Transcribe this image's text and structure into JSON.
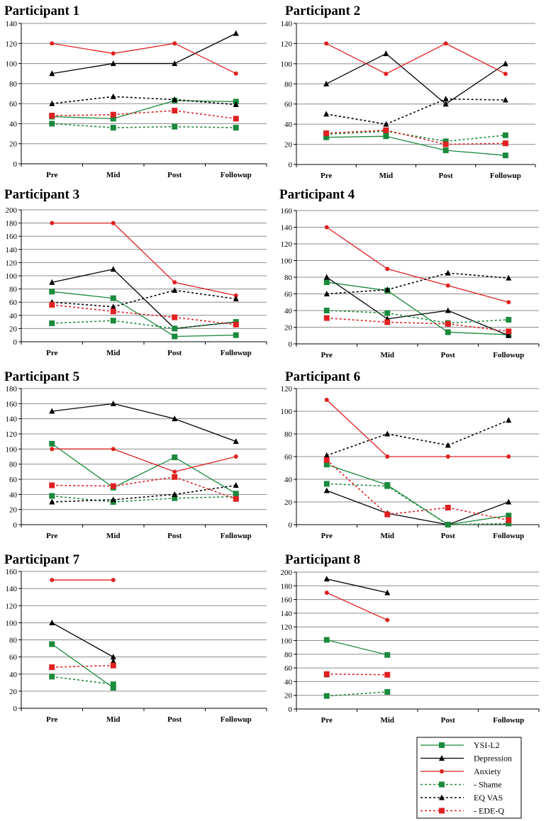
{
  "chart_data": {
    "type": "line",
    "categories": [
      "Pre",
      "Mid",
      "Post",
      "Followup"
    ],
    "series_style": [
      {
        "name": "YSI-L2",
        "color": "#1a8a3c",
        "dashed": false,
        "marker": "square"
      },
      {
        "name": "Depression",
        "color": "#000000",
        "dashed": false,
        "marker": "triangle"
      },
      {
        "name": "Anxiety",
        "color": "#e02020",
        "dashed": false,
        "marker": "circle"
      },
      {
        "name": "Shame",
        "color": "#1a8a3c",
        "dashed": true,
        "marker": "square"
      },
      {
        "name": "EQ VAS",
        "color": "#000000",
        "dashed": true,
        "marker": "triangle"
      },
      {
        "name": "EDE-Q",
        "color": "#e02020",
        "dashed": true,
        "marker": "square"
      }
    ],
    "legend": {
      "position": "bottom-right",
      "entries": [
        "YSI-L2",
        "Depression",
        "Anxiety",
        "- Shame",
        "EQ VAS",
        "- EDE-Q"
      ]
    },
    "charts": [
      {
        "title": "Participant 1",
        "yticks": [
          "0",
          "20",
          "40",
          "60",
          "80",
          "100",
          "120",
          "140"
        ],
        "ylim": [
          0,
          140
        ],
        "series": [
          {
            "name": "YSI-L2",
            "values": [
              47,
              45,
              63,
              62
            ]
          },
          {
            "name": "Depression",
            "values": [
              90,
              100,
              100,
              130
            ]
          },
          {
            "name": "Anxiety",
            "values": [
              120,
              110,
              120,
              90
            ]
          },
          {
            "name": "Shame",
            "values": [
              40,
              36,
              37,
              36
            ]
          },
          {
            "name": "EQ VAS",
            "values": [
              60,
              67,
              64,
              59
            ]
          },
          {
            "name": "EDE-Q",
            "values": [
              48,
              49,
              53,
              45
            ]
          }
        ]
      },
      {
        "title": "Participant 2",
        "yticks": [
          "0",
          "20",
          "40",
          "60",
          "80",
          "100",
          "120",
          "140"
        ],
        "ylim": [
          0,
          140
        ],
        "series": [
          {
            "name": "YSI-L2",
            "values": [
              27,
              28,
              14,
              9
            ]
          },
          {
            "name": "Depression",
            "values": [
              80,
              110,
              60,
              100
            ]
          },
          {
            "name": "Anxiety",
            "values": [
              120,
              90,
              120,
              90
            ]
          },
          {
            "name": "Shame",
            "values": [
              30,
              33,
              23,
              29
            ]
          },
          {
            "name": "EQ VAS",
            "values": [
              50,
              40,
              65,
              64
            ]
          },
          {
            "name": "EDE-Q",
            "values": [
              31,
              34,
              20,
              21
            ]
          }
        ]
      },
      {
        "title": "Participant 3",
        "yticks": [
          "0",
          "20",
          "40",
          "60",
          "80",
          "100",
          "120",
          "140",
          "160",
          "180",
          "200"
        ],
        "ylim": [
          0,
          200
        ],
        "series": [
          {
            "name": "YSI-L2",
            "values": [
              76,
              66,
              8,
              10
            ]
          },
          {
            "name": "Depression",
            "values": [
              90,
              110,
              20,
              30
            ]
          },
          {
            "name": "Anxiety",
            "values": [
              180,
              180,
              90,
              70
            ]
          },
          {
            "name": "Shame",
            "values": [
              28,
              32,
              20,
              30
            ]
          },
          {
            "name": "EQ VAS",
            "values": [
              60,
              53,
              78,
              65
            ]
          },
          {
            "name": "EDE-Q",
            "values": [
              56,
              46,
              37,
              26
            ]
          }
        ]
      },
      {
        "title": "Participant 4",
        "yticks": [
          "0",
          "20",
          "40",
          "60",
          "80",
          "100",
          "120",
          "140",
          "160"
        ],
        "ylim": [
          0,
          160
        ],
        "series": [
          {
            "name": "YSI-L2",
            "values": [
              74,
              64,
              14,
              11
            ]
          },
          {
            "name": "Depression",
            "values": [
              80,
              30,
              40,
              10
            ]
          },
          {
            "name": "Anxiety",
            "values": [
              140,
              90,
              70,
              50
            ]
          },
          {
            "name": "Shame",
            "values": [
              40,
              37,
              25,
              29
            ]
          },
          {
            "name": "EQ VAS",
            "values": [
              60,
              65,
              85,
              79
            ]
          },
          {
            "name": "EDE-Q",
            "values": [
              31,
              26,
              24,
              15
            ]
          }
        ]
      },
      {
        "title": "Participant 5",
        "yticks": [
          "0",
          "20",
          "40",
          "60",
          "80",
          "100",
          "120",
          "140",
          "160",
          "180"
        ],
        "ylim": [
          0,
          180
        ],
        "series": [
          {
            "name": "YSI-L2",
            "values": [
              107,
              49,
              89,
              41
            ]
          },
          {
            "name": "Depression",
            "values": [
              150,
              160,
              140,
              110
            ]
          },
          {
            "name": "Anxiety",
            "values": [
              100,
              100,
              70,
              90
            ]
          },
          {
            "name": "Shame",
            "values": [
              38,
              30,
              35,
              37
            ]
          },
          {
            "name": "EQ VAS",
            "values": [
              30,
              33,
              40,
              52
            ]
          },
          {
            "name": "EDE-Q",
            "values": [
              52,
              51,
              63,
              34
            ]
          }
        ]
      },
      {
        "title": "Participant 6",
        "yticks": [
          "0",
          "20",
          "40",
          "60",
          "80",
          "100",
          "120"
        ],
        "ylim": [
          0,
          120
        ],
        "series": [
          {
            "name": "YSI-L2",
            "values": [
              53,
              35,
              0,
              8
            ]
          },
          {
            "name": "Depression",
            "values": [
              30,
              10,
              0,
              20
            ]
          },
          {
            "name": "Anxiety",
            "values": [
              110,
              60,
              60,
              60
            ]
          },
          {
            "name": "Shame",
            "values": [
              36,
              34,
              0,
              1
            ]
          },
          {
            "name": "EQ VAS",
            "values": [
              61,
              80,
              70,
              92
            ]
          },
          {
            "name": "EDE-Q",
            "values": [
              57,
              9,
              15,
              4
            ]
          }
        ]
      },
      {
        "title": "Participant 7",
        "yticks": [
          "0",
          "20",
          "40",
          "60",
          "80",
          "100",
          "120",
          "140",
          "160"
        ],
        "ylim": [
          0,
          160
        ],
        "series": [
          {
            "name": "YSI-L2",
            "values": [
              75,
              24,
              null,
              null
            ]
          },
          {
            "name": "Depression",
            "values": [
              100,
              60,
              null,
              null
            ]
          },
          {
            "name": "Anxiety",
            "values": [
              150,
              150,
              null,
              null
            ]
          },
          {
            "name": "Shame",
            "values": [
              37,
              28,
              null,
              null
            ]
          },
          {
            "name": "EQ VAS",
            "values": [
              null,
              55,
              null,
              null
            ]
          },
          {
            "name": "EDE-Q",
            "values": [
              48,
              50,
              null,
              null
            ]
          }
        ]
      },
      {
        "title": "Participant 8",
        "yticks": [
          "0",
          "20",
          "40",
          "60",
          "80",
          "100",
          "120",
          "140",
          "160",
          "180",
          "200"
        ],
        "ylim": [
          0,
          200
        ],
        "series": [
          {
            "name": "YSI-L2",
            "values": [
              101,
              79,
              null,
              null
            ]
          },
          {
            "name": "Depression",
            "values": [
              190,
              170,
              null,
              null
            ]
          },
          {
            "name": "Anxiety",
            "values": [
              170,
              130,
              null,
              null
            ]
          },
          {
            "name": "Shame",
            "values": [
              19,
              25,
              null,
              null
            ]
          },
          {
            "name": "EQ VAS",
            "values": [
              50,
              null,
              null,
              null
            ]
          },
          {
            "name": "EDE-Q",
            "values": [
              51,
              50,
              null,
              null
            ]
          }
        ]
      }
    ]
  }
}
